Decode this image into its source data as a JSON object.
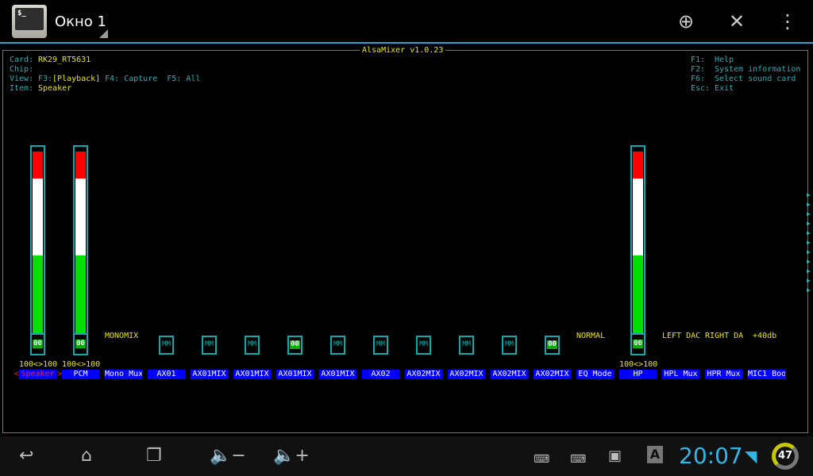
{
  "topbar": {
    "title": "Окно 1",
    "icon_text": "$_",
    "actions": [
      "add-icon",
      "close-icon",
      "overflow-menu-icon"
    ]
  },
  "mixer": {
    "title": "AlsaMixer v1.0.23",
    "card_label": "Card:",
    "card": "RK29_RT5631",
    "chip_label": "Chip:",
    "view_label": "View:",
    "view_f3": "F3:",
    "view_playback": "[Playback]",
    "view_rest": " F4: Capture  F5: All",
    "item_label": "Item:",
    "item": "Speaker",
    "help": [
      [
        "F1:",
        "Help"
      ],
      [
        "F2:",
        "System information"
      ],
      [
        "F6:",
        "Select sound card"
      ],
      [
        "Esc:",
        "Exit"
      ]
    ],
    "colors": {
      "red": "#ff0000",
      "white": "#ffffff",
      "green": "#00e000",
      "label_bg": "#0000ff",
      "frame": "#1aa0a0",
      "value": "#e8e800"
    },
    "controls": [
      {
        "label": "Speaker",
        "type": "bar",
        "level": 100,
        "value": "100<>100",
        "sw": "00",
        "selected": true
      },
      {
        "label": "PCM",
        "type": "bar",
        "level": 100,
        "value": "100<>100",
        "sw": "00"
      },
      {
        "label": "Mono Mux",
        "type": "enum",
        "enum": "MONOMIX"
      },
      {
        "label": "AX01",
        "type": "switch",
        "sw": "MM"
      },
      {
        "label": "AX01MIX",
        "type": "switch",
        "sw": "MM"
      },
      {
        "label": "AX01MIX",
        "type": "switch",
        "sw": "MM"
      },
      {
        "label": "AX01MIX",
        "type": "switch",
        "sw": "00"
      },
      {
        "label": "AX01MIX",
        "type": "switch",
        "sw": "MM"
      },
      {
        "label": "AX02",
        "type": "switch",
        "sw": "MM"
      },
      {
        "label": "AX02MIX",
        "type": "switch",
        "sw": "MM"
      },
      {
        "label": "AX02MIX",
        "type": "switch",
        "sw": "MM"
      },
      {
        "label": "AX02MIX",
        "type": "switch",
        "sw": "MM"
      },
      {
        "label": "AX02MIX",
        "type": "switch",
        "sw": "00"
      },
      {
        "label": "EQ Mode",
        "type": "enum",
        "enum": "NORMAL"
      },
      {
        "label": "HP",
        "type": "bar",
        "level": 100,
        "value": "100<>100",
        "sw": "00"
      },
      {
        "label": "HPL Mux",
        "type": "enum",
        "enum": "LEFT DAC"
      },
      {
        "label": "HPR Mux",
        "type": "enum",
        "enum": "RIGHT DA"
      },
      {
        "label": "MIC1 Boo",
        "type": "enum",
        "enum": " +40db"
      }
    ]
  },
  "navbar": {
    "buttons": [
      "back-icon",
      "home-icon",
      "recent-apps-icon",
      "volume-down-icon",
      "volume-up-icon"
    ],
    "clock": "20:07",
    "battery": "47"
  }
}
